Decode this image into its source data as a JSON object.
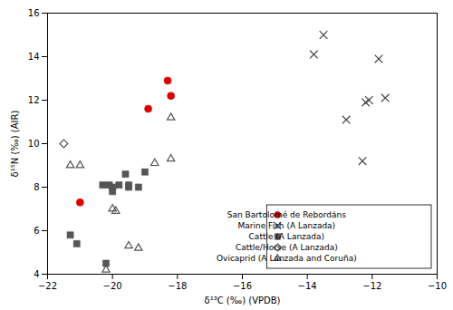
{
  "chart_data": {
    "type": "scatter",
    "xlabel": "δ¹³C (‰) (VPDB)",
    "ylabel": "δ¹⁵N (‰) (AIR)",
    "xlim": [
      -22,
      -10
    ],
    "ylim": [
      4,
      16
    ],
    "xticks": [
      -22,
      -20,
      -18,
      -16,
      -14,
      -12,
      -10
    ],
    "yticks": [
      4,
      6,
      8,
      10,
      12,
      14,
      16
    ],
    "legend": "lower right",
    "series": [
      {
        "name": "San Bartolomé de Rebordáns",
        "color": "#dd0000",
        "marker": "circle",
        "x": [
          -21.0,
          -18.3,
          -18.2,
          -18.9
        ],
        "y": [
          7.3,
          12.9,
          12.2,
          11.6
        ]
      },
      {
        "name": "Marine Fish (A Lanzada)",
        "color": "#444444",
        "marker": "x",
        "x": [
          -13.8,
          -13.5,
          -12.8,
          -12.3,
          -12.2,
          -12.1,
          -11.8,
          -11.6
        ],
        "y": [
          14.1,
          15.0,
          11.1,
          9.2,
          11.9,
          12.0,
          13.9,
          12.1
        ]
      },
      {
        "name": "Cattle (A Lanzada)",
        "color": "#555555",
        "marker": "square",
        "x": [
          -21.3,
          -21.1,
          -20.3,
          -20.2,
          -20.1,
          -20.0,
          -20.0,
          -19.8,
          -19.6,
          -19.5,
          -19.5,
          -19.2,
          -19.0
        ],
        "y": [
          5.8,
          5.4,
          8.1,
          4.5,
          8.1,
          8.0,
          7.8,
          8.1,
          8.6,
          8.1,
          8.0,
          8.0,
          8.7
        ]
      },
      {
        "name": "Cattle/Horse (A Lanzada)",
        "color": "#555555",
        "marker": "diamond",
        "x": [
          -21.5
        ],
        "y": [
          10.0
        ]
      },
      {
        "name": "Ovicaprid (A Lanzada and Coruña)",
        "color": "#555555",
        "marker": "triangle",
        "x": [
          -21.3,
          -21.0,
          -20.2,
          -20.0,
          -19.9,
          -19.5,
          -19.2,
          -18.7,
          -18.2,
          -18.2
        ],
        "y": [
          9.0,
          9.0,
          4.2,
          7.0,
          6.9,
          5.3,
          5.2,
          9.1,
          9.3,
          11.2
        ]
      }
    ]
  }
}
